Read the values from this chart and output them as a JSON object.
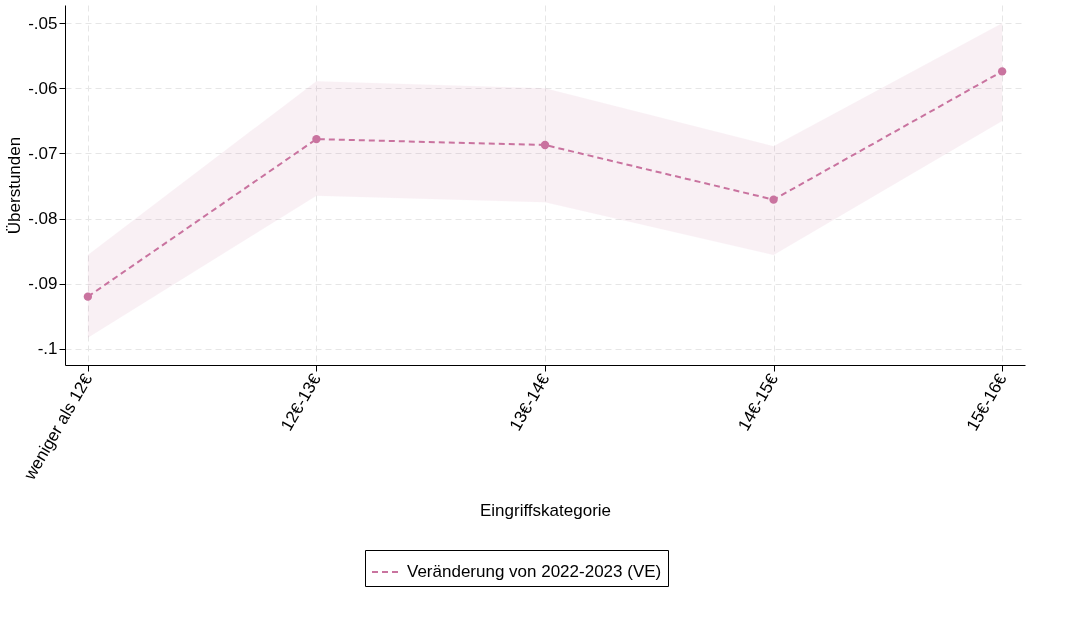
{
  "chart_data": {
    "type": "line",
    "xlabel": "Eingriffskategorie",
    "ylabel": "Überstunden",
    "categories": [
      "weniger als 12€",
      "12€-13€",
      "13€-14€",
      "14€-15€",
      "15€-16€"
    ],
    "series": [
      {
        "name": "Veränderung von 2022-2023 (VE)",
        "color": "#c9739f",
        "values": [
          -0.092,
          -0.0678,
          -0.0687,
          -0.0771,
          -0.0574
        ],
        "lower": [
          -0.0983,
          -0.0765,
          -0.0775,
          -0.0856,
          -0.065
        ],
        "upper": [
          -0.0856,
          -0.0589,
          -0.06,
          -0.0689,
          -0.05
        ]
      }
    ],
    "ylim": [
      -0.1025,
      -0.0472
    ],
    "yticks": [
      {
        "value": -0.1,
        "label": "-.1"
      },
      {
        "value": -0.09,
        "label": "-.09"
      },
      {
        "value": -0.08,
        "label": "-.08"
      },
      {
        "value": -0.07,
        "label": "-.07"
      },
      {
        "value": -0.06,
        "label": "-.06"
      },
      {
        "value": -0.05,
        "label": "-.05"
      }
    ],
    "grid": true,
    "legend": "bottom",
    "marker": "circle",
    "line_style": "dashed"
  }
}
